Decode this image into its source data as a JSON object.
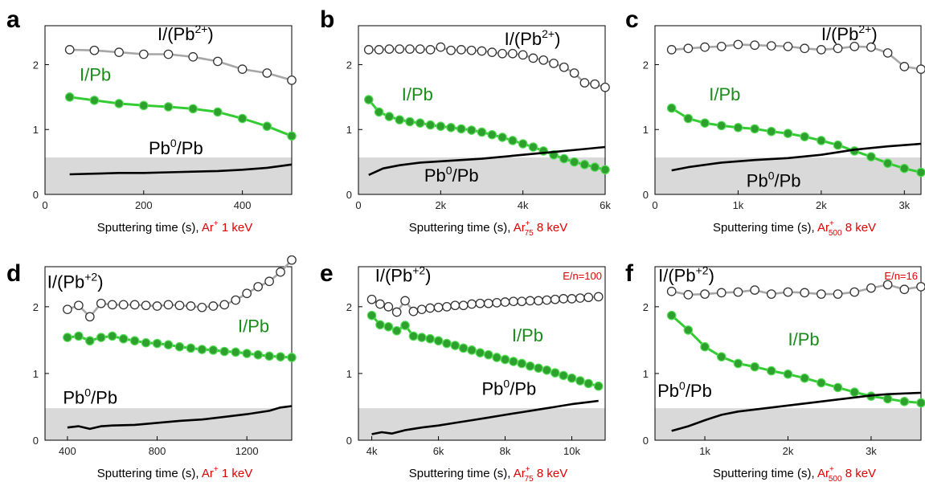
{
  "colors": {
    "axes": "#000000",
    "shade": "#d9d9d9",
    "gray_line": "#a6a6a6",
    "green_line": "#33cc33",
    "green_fill": "#2da02d",
    "black_line": "#000000",
    "red_text": "#e00000",
    "green_text": "#1a8c1a"
  },
  "chart_data": [
    {
      "type": "line",
      "panel": "a",
      "xlim": [
        0,
        500
      ],
      "ylim": [
        0,
        2.6
      ],
      "shade_y": 0.57,
      "xticks": [
        {
          "v": 0,
          "t": "0"
        },
        {
          "v": 200,
          "t": "200"
        },
        {
          "v": 400,
          "t": "400"
        }
      ],
      "yticks": [
        0,
        1,
        2
      ],
      "xlabel": "Sputtering time (s), ",
      "beam": "Ar",
      "beam_sup": "+",
      "beam_sub": "",
      "beam_energy": " 1 keV",
      "energy_note": "",
      "series": [
        {
          "name": "I/(Pb",
          "name_sup": "2+",
          "name_tail": ")",
          "style": "open",
          "label_pos": [
            228,
            2.38
          ],
          "x": [
            50,
            100,
            150,
            200,
            250,
            300,
            350,
            400,
            450,
            500
          ],
          "y": [
            2.23,
            2.22,
            2.19,
            2.16,
            2.16,
            2.12,
            2.05,
            1.93,
            1.87,
            1.76
          ]
        },
        {
          "name": "I/Pb",
          "name_sup": "",
          "name_tail": "",
          "style": "filled",
          "label_pos": [
            70,
            1.75
          ],
          "x": [
            50,
            100,
            150,
            200,
            250,
            300,
            350,
            400,
            450,
            500
          ],
          "y": [
            1.5,
            1.45,
            1.4,
            1.37,
            1.35,
            1.32,
            1.27,
            1.17,
            1.05,
            0.9
          ]
        },
        {
          "name": "Pb",
          "name_sup": "0",
          "name_tail": "/Pb",
          "style": "line",
          "label_pos": [
            210,
            0.62
          ],
          "x": [
            50,
            100,
            150,
            200,
            250,
            300,
            350,
            400,
            450,
            500
          ],
          "y": [
            0.31,
            0.32,
            0.33,
            0.33,
            0.34,
            0.35,
            0.36,
            0.38,
            0.41,
            0.46
          ]
        }
      ]
    },
    {
      "type": "line",
      "panel": "b",
      "xlim": [
        0,
        6000
      ],
      "ylim": [
        0,
        2.6
      ],
      "shade_y": 0.57,
      "xticks": [
        {
          "v": 0,
          "t": "0"
        },
        {
          "v": 2000,
          "t": "2k"
        },
        {
          "v": 4000,
          "t": "4k"
        },
        {
          "v": 6000,
          "t": "6k"
        }
      ],
      "yticks": [
        0,
        1,
        2
      ],
      "xlabel": "Sputtering time (s), ",
      "beam": "Ar",
      "beam_sup": "+",
      "beam_sub": "75",
      "beam_energy": " 8 keV",
      "energy_note": "",
      "series": [
        {
          "name": "I/(Pb",
          "name_sup": "2+",
          "name_tail": ")",
          "style": "open",
          "label_pos": [
            3550,
            2.3
          ],
          "x": [
            250,
            500,
            750,
            1000,
            1250,
            1500,
            1750,
            2000,
            2250,
            2500,
            2750,
            3000,
            3250,
            3500,
            3750,
            4000,
            4250,
            4500,
            4750,
            5000,
            5250,
            5500,
            5750,
            6000
          ],
          "y": [
            2.23,
            2.23,
            2.24,
            2.24,
            2.24,
            2.24,
            2.23,
            2.27,
            2.22,
            2.23,
            2.22,
            2.21,
            2.19,
            2.17,
            2.17,
            2.15,
            2.1,
            2.07,
            2.02,
            1.96,
            1.87,
            1.72,
            1.7,
            1.65
          ]
        },
        {
          "name": "I/Pb",
          "name_sup": "",
          "name_tail": "",
          "style": "filled",
          "label_pos": [
            1050,
            1.45
          ],
          "x": [
            250,
            500,
            750,
            1000,
            1250,
            1500,
            1750,
            2000,
            2250,
            2500,
            2750,
            3000,
            3250,
            3500,
            3750,
            4000,
            4250,
            4500,
            4750,
            5000,
            5250,
            5500,
            5750,
            6000
          ],
          "y": [
            1.46,
            1.27,
            1.2,
            1.15,
            1.12,
            1.1,
            1.07,
            1.05,
            1.03,
            1.01,
            0.99,
            0.96,
            0.92,
            0.88,
            0.83,
            0.78,
            0.73,
            0.67,
            0.61,
            0.55,
            0.5,
            0.46,
            0.42,
            0.38
          ]
        },
        {
          "name": "Pb",
          "name_sup": "0",
          "name_tail": "/Pb",
          "style": "line",
          "label_pos": [
            1600,
            0.2
          ],
          "x": [
            250,
            600,
            1000,
            1500,
            2000,
            2500,
            3000,
            3500,
            4000,
            4500,
            5000,
            5500,
            6000
          ],
          "y": [
            0.3,
            0.4,
            0.45,
            0.49,
            0.51,
            0.53,
            0.55,
            0.58,
            0.61,
            0.64,
            0.67,
            0.7,
            0.73
          ]
        }
      ]
    },
    {
      "type": "line",
      "panel": "c",
      "xlim": [
        0,
        3200
      ],
      "ylim": [
        0,
        2.6
      ],
      "shade_y": 0.57,
      "xticks": [
        {
          "v": 0,
          "t": "0"
        },
        {
          "v": 1000,
          "t": "1k"
        },
        {
          "v": 2000,
          "t": "2k"
        },
        {
          "v": 3000,
          "t": "3k"
        }
      ],
      "yticks": [
        0,
        1,
        2
      ],
      "xlabel": "Sputtering time (s), ",
      "beam": "Ar",
      "beam_sup": "+",
      "beam_sub": "500",
      "beam_energy": " 8 keV",
      "energy_note": "",
      "series": [
        {
          "name": "I/(Pb",
          "name_sup": "2+",
          "name_tail": ")",
          "style": "open",
          "label_pos": [
            2000,
            2.38
          ],
          "x": [
            200,
            400,
            600,
            800,
            1000,
            1200,
            1400,
            1600,
            1800,
            2000,
            2200,
            2400,
            2600,
            2800,
            3000,
            3200
          ],
          "y": [
            2.23,
            2.25,
            2.27,
            2.28,
            2.31,
            2.3,
            2.29,
            2.28,
            2.25,
            2.23,
            2.25,
            2.28,
            2.27,
            2.18,
            1.97,
            1.93
          ]
        },
        {
          "name": "I/Pb",
          "name_sup": "",
          "name_tail": "",
          "style": "filled",
          "label_pos": [
            650,
            1.45
          ],
          "x": [
            200,
            400,
            600,
            800,
            1000,
            1200,
            1400,
            1600,
            1800,
            2000,
            2200,
            2400,
            2600,
            2800,
            3000,
            3200
          ],
          "y": [
            1.33,
            1.17,
            1.1,
            1.06,
            1.03,
            1.01,
            0.97,
            0.94,
            0.89,
            0.83,
            0.76,
            0.67,
            0.58,
            0.48,
            0.4,
            0.34
          ]
        },
        {
          "name": "Pb",
          "name_sup": "0",
          "name_tail": "/Pb",
          "style": "line",
          "label_pos": [
            1100,
            0.12
          ],
          "x": [
            200,
            400,
            800,
            1200,
            1600,
            2000,
            2400,
            2800,
            3200
          ],
          "y": [
            0.37,
            0.42,
            0.49,
            0.53,
            0.56,
            0.61,
            0.69,
            0.74,
            0.78
          ]
        }
      ]
    },
    {
      "type": "line",
      "panel": "d",
      "xlim": [
        300,
        1400
      ],
      "ylim": [
        0,
        2.6
      ],
      "shade_y": 0.48,
      "xticks": [
        {
          "v": 400,
          "t": "400"
        },
        {
          "v": 800,
          "t": "800"
        },
        {
          "v": 1200,
          "t": "1200"
        }
      ],
      "yticks": [
        0,
        1,
        2
      ],
      "xlabel": "Sputtering time (s), ",
      "beam": "Ar",
      "beam_sup": "+",
      "beam_sub": "",
      "beam_energy": " 1 keV",
      "energy_note": "",
      "series": [
        {
          "name": "I/(Pb",
          "name_sup": "+2",
          "name_tail": ")",
          "style": "open",
          "label_pos": [
            310,
            2.28
          ],
          "x": [
            400,
            450,
            500,
            550,
            600,
            650,
            700,
            750,
            800,
            850,
            900,
            950,
            1000,
            1050,
            1100,
            1150,
            1200,
            1250,
            1300,
            1350,
            1400
          ],
          "y": [
            1.96,
            2.02,
            1.85,
            2.05,
            2.03,
            2.03,
            2.03,
            2.02,
            2.01,
            2.03,
            2.02,
            2.01,
            1.99,
            2.01,
            2.03,
            2.1,
            2.2,
            2.3,
            2.38,
            2.52,
            2.7
          ]
        },
        {
          "name": "I/Pb",
          "name_sup": "",
          "name_tail": "",
          "style": "filled",
          "label_pos": [
            1160,
            1.62
          ],
          "x": [
            400,
            450,
            500,
            550,
            600,
            650,
            700,
            750,
            800,
            850,
            900,
            950,
            1000,
            1050,
            1100,
            1150,
            1200,
            1250,
            1300,
            1350,
            1400
          ],
          "y": [
            1.54,
            1.56,
            1.49,
            1.54,
            1.56,
            1.52,
            1.49,
            1.46,
            1.45,
            1.43,
            1.4,
            1.38,
            1.36,
            1.35,
            1.33,
            1.32,
            1.3,
            1.28,
            1.26,
            1.25,
            1.24
          ]
        },
        {
          "name": "Pb",
          "name_sup": "0",
          "name_tail": "/Pb",
          "style": "line",
          "label_pos": [
            380,
            0.55
          ],
          "x": [
            400,
            450,
            500,
            550,
            600,
            700,
            800,
            900,
            1000,
            1100,
            1200,
            1300,
            1350,
            1400
          ],
          "y": [
            0.19,
            0.21,
            0.17,
            0.21,
            0.22,
            0.23,
            0.26,
            0.29,
            0.31,
            0.35,
            0.39,
            0.44,
            0.49,
            0.51
          ]
        }
      ]
    },
    {
      "type": "line",
      "panel": "e",
      "xlim": [
        3600,
        11000
      ],
      "ylim": [
        0,
        2.6
      ],
      "shade_y": 0.48,
      "xticks": [
        {
          "v": 4000,
          "t": "4k"
        },
        {
          "v": 6000,
          "t": "6k"
        },
        {
          "v": 8000,
          "t": "8k"
        },
        {
          "v": 10000,
          "t": "10k"
        }
      ],
      "yticks": [
        0,
        1,
        2
      ],
      "xlabel": "Sputtering time (s), ",
      "beam": "Ar",
      "beam_sup": "+",
      "beam_sub": "75",
      "beam_energy": " 8 keV",
      "energy_note": "E/n=100",
      "series": [
        {
          "name": "I/(Pb",
          "name_sup": "+2",
          "name_tail": ")",
          "style": "open",
          "label_pos": [
            4100,
            2.38
          ],
          "x": [
            4000,
            4250,
            4500,
            4750,
            5000,
            5250,
            5500,
            5750,
            6000,
            6250,
            6500,
            6750,
            7000,
            7250,
            7500,
            7750,
            8000,
            8250,
            8500,
            8750,
            9000,
            9250,
            9500,
            9750,
            10000,
            10250,
            10500,
            10800
          ],
          "y": [
            2.11,
            2.04,
            2.0,
            1.92,
            2.09,
            1.93,
            1.96,
            1.98,
            1.99,
            2.0,
            2.02,
            2.02,
            2.04,
            2.05,
            2.05,
            2.06,
            2.07,
            2.08,
            2.08,
            2.09,
            2.09,
            2.1,
            2.11,
            2.12,
            2.12,
            2.13,
            2.14,
            2.15
          ]
        },
        {
          "name": "I/Pb",
          "name_sup": "",
          "name_tail": "",
          "style": "filled",
          "label_pos": [
            8200,
            1.48
          ],
          "x": [
            4000,
            4250,
            4500,
            4750,
            5000,
            5250,
            5500,
            5750,
            6000,
            6250,
            6500,
            6750,
            7000,
            7250,
            7500,
            7750,
            8000,
            8250,
            8500,
            8750,
            9000,
            9250,
            9500,
            9750,
            10000,
            10250,
            10500,
            10800
          ],
          "y": [
            1.87,
            1.73,
            1.7,
            1.64,
            1.72,
            1.56,
            1.54,
            1.52,
            1.49,
            1.45,
            1.42,
            1.38,
            1.35,
            1.31,
            1.28,
            1.24,
            1.21,
            1.18,
            1.15,
            1.11,
            1.08,
            1.05,
            1.01,
            0.97,
            0.93,
            0.89,
            0.85,
            0.81
          ]
        },
        {
          "name": "Pb",
          "name_sup": "0",
          "name_tail": "/Pb",
          "style": "line",
          "label_pos": [
            7300,
            0.68
          ],
          "x": [
            4000,
            4300,
            4600,
            5000,
            5500,
            6000,
            6500,
            7000,
            7500,
            8000,
            8500,
            9000,
            9500,
            10000,
            10500,
            10800
          ],
          "y": [
            0.09,
            0.12,
            0.1,
            0.15,
            0.19,
            0.22,
            0.26,
            0.3,
            0.34,
            0.38,
            0.42,
            0.46,
            0.5,
            0.54,
            0.57,
            0.59
          ]
        }
      ]
    },
    {
      "type": "line",
      "panel": "f",
      "xlim": [
        400,
        3600
      ],
      "ylim": [
        0,
        2.6
      ],
      "shade_y": 0.48,
      "xticks": [
        {
          "v": 1000,
          "t": "1k"
        },
        {
          "v": 2000,
          "t": "2k"
        },
        {
          "v": 3000,
          "t": "3k"
        }
      ],
      "yticks": [
        0,
        1,
        2
      ],
      "xlabel": "Sputtering time (s), ",
      "beam": "Ar",
      "beam_sup": "+",
      "beam_sub": "500",
      "beam_energy": " 8 keV",
      "energy_note": "E/n=16",
      "series": [
        {
          "name": "I/(Pb",
          "name_sup": "+2",
          "name_tail": ")",
          "style": "open",
          "label_pos": [
            440,
            2.38
          ],
          "x": [
            600,
            800,
            1000,
            1200,
            1400,
            1600,
            1800,
            2000,
            2200,
            2400,
            2600,
            2800,
            3000,
            3200,
            3400,
            3600
          ],
          "y": [
            2.23,
            2.18,
            2.19,
            2.21,
            2.22,
            2.25,
            2.19,
            2.22,
            2.21,
            2.19,
            2.19,
            2.22,
            2.28,
            2.33,
            2.26,
            2.3
          ]
        },
        {
          "name": "I/Pb",
          "name_sup": "",
          "name_tail": "",
          "style": "filled",
          "label_pos": [
            2000,
            1.42
          ],
          "x": [
            600,
            800,
            1000,
            1200,
            1400,
            1600,
            1800,
            2000,
            2200,
            2400,
            2600,
            2800,
            3000,
            3200,
            3400,
            3600
          ],
          "y": [
            1.87,
            1.65,
            1.4,
            1.25,
            1.15,
            1.1,
            1.04,
            0.99,
            0.93,
            0.86,
            0.79,
            0.72,
            0.66,
            0.62,
            0.58,
            0.56
          ]
        },
        {
          "name": "Pb",
          "name_sup": "0",
          "name_tail": "/Pb",
          "style": "line",
          "label_pos": [
            430,
            0.65
          ],
          "x": [
            600,
            800,
            1000,
            1200,
            1400,
            1600,
            1800,
            2000,
            2200,
            2400,
            2600,
            2800,
            3000,
            3200,
            3400,
            3600
          ],
          "y": [
            0.14,
            0.21,
            0.3,
            0.38,
            0.43,
            0.46,
            0.49,
            0.52,
            0.55,
            0.58,
            0.61,
            0.64,
            0.67,
            0.69,
            0.7,
            0.71
          ]
        }
      ]
    }
  ]
}
